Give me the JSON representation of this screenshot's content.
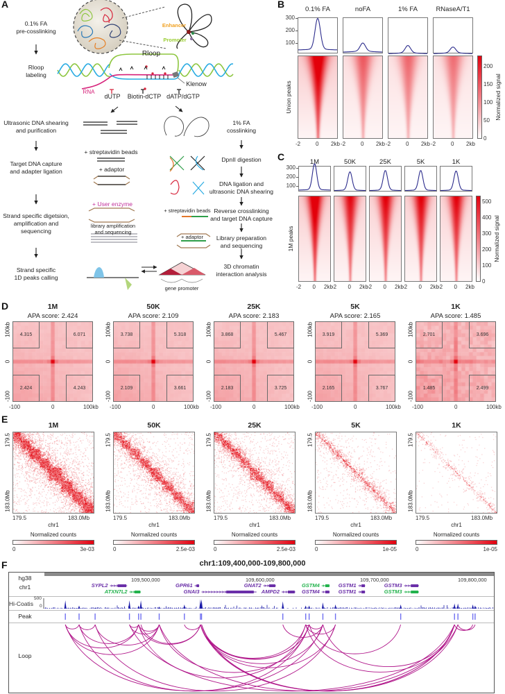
{
  "panel_labels": {
    "A": "A",
    "B": "B",
    "C": "C",
    "D": "D",
    "E": "E",
    "F": "F"
  },
  "panel_a": {
    "left_steps": [
      "0.1% FA\npre-cosslinking",
      "Rloop\nlabeling",
      "Ultrasonic DNA shearing\nand purification",
      "Target DNA capture\nand adapter ligation",
      "Strand specific digetsion,\namplification and\nsequencing",
      "Strand specific\n1D peaks calling"
    ],
    "right_steps": [
      "1% FA\ncosslinking",
      "DpnII digestion",
      "DNA ligation and\nultrasonic DNA shearing",
      "Reverse crosslinking\nand target DNA capture",
      "Library preparation\nand sequencing",
      "3D chromatin\ninteraction analysis"
    ],
    "labels": {
      "enhancer": "Enhancer",
      "promoter": "Promoter",
      "rloop": "Rloop",
      "klenow": "Klenow",
      "rna": "RNA",
      "dutp": "dUTP",
      "biotin_dctp": "Biotin-dCTP",
      "datp_dgtp": "dATP/dGTP",
      "streptavidin_1": "+ streptavidin beads",
      "adaptor_1": "+ adaptor",
      "user_enzyme": "+ User enzyme",
      "library_amp": "library amplification\nand sequencing",
      "streptavidin_2": "+ streptavidin beads",
      "adaptor_2": "+ adaptor",
      "gene_promoter": "gene promoter"
    },
    "colors": {
      "enhancer": "#f0a020",
      "promoter": "#9acd32",
      "rna": "#d6217a",
      "user_enzyme": "#c0309a"
    }
  },
  "chart_data": [
    {
      "panel": "B",
      "type": "heatmap",
      "columns": [
        {
          "title": "0.1% FA",
          "profile_peak": 290,
          "profile_baseline": 45
        },
        {
          "title": "noFA",
          "profile_peak": 92,
          "profile_baseline": 28
        },
        {
          "title": "1% FA",
          "profile_peak": 72,
          "profile_baseline": 15
        },
        {
          "title": "RNaseA/T1",
          "profile_peak": 60,
          "profile_baseline": 15
        }
      ],
      "profile_yticks": [
        100,
        200,
        300
      ],
      "xticks": [
        "-2",
        "0",
        "2kb"
      ],
      "ylabel": "Union peaks",
      "colorbar": {
        "label": "Normalized signal",
        "ticks": [
          0,
          50,
          100,
          150,
          200
        ],
        "range": [
          0,
          230
        ]
      },
      "line_color": "#2b2b8c",
      "heat_color": "#e3000f"
    },
    {
      "panel": "C",
      "type": "heatmap",
      "columns": [
        {
          "title": "1M",
          "profile_peak": 340,
          "profile_baseline": 55
        },
        {
          "title": "50K",
          "profile_peak": 250,
          "profile_baseline": 50
        },
        {
          "title": "25K",
          "profile_peak": 265,
          "profile_baseline": 50
        },
        {
          "title": "5K",
          "profile_peak": 265,
          "profile_baseline": 50
        },
        {
          "title": "1K",
          "profile_peak": 260,
          "profile_baseline": 50
        }
      ],
      "profile_yticks": [
        100,
        200,
        300
      ],
      "xticks": [
        "-2",
        "0",
        "2kb"
      ],
      "ylabel": "1M peaks",
      "colorbar": {
        "label": "Normalized signal",
        "ticks": [
          0,
          100,
          200,
          300,
          400,
          500
        ],
        "range": [
          0,
          540
        ]
      },
      "line_color": "#2b2b8c",
      "heat_color": "#e3000f"
    },
    {
      "panel": "D",
      "type": "heatmap",
      "score_prefix": "APA score: ",
      "yticks": [
        "100kb",
        "0",
        "-100"
      ],
      "xticks": [
        "-100",
        "0",
        "100kb"
      ],
      "plots": [
        {
          "title": "1M",
          "apa_score": "2.424",
          "corners": {
            "top_left": "4.315",
            "top_right": "6.071",
            "bottom_left": "2.424",
            "bottom_right": "4.243"
          }
        },
        {
          "title": "50K",
          "apa_score": "2.109",
          "corners": {
            "top_left": "3.738",
            "top_right": "5.318",
            "bottom_left": "2.109",
            "bottom_right": "3.661"
          }
        },
        {
          "title": "25K",
          "apa_score": "2.183",
          "corners": {
            "top_left": "3.868",
            "top_right": "5.467",
            "bottom_left": "2.183",
            "bottom_right": "3.725"
          }
        },
        {
          "title": "5K",
          "apa_score": "2.165",
          "corners": {
            "top_left": "3.919",
            "top_right": "5.369",
            "bottom_left": "2.165",
            "bottom_right": "3.767"
          }
        },
        {
          "title": "1K",
          "apa_score": "1.485",
          "corners": {
            "top_left": "2.701",
            "top_right": "3.696",
            "bottom_left": "1.485",
            "bottom_right": "2.499"
          }
        }
      ]
    },
    {
      "panel": "E",
      "type": "heatmap",
      "xlabel": "chr1",
      "xticks": [
        "179.5",
        "183.0Mb"
      ],
      "yticks": [
        "179.5",
        "183.0Mb"
      ],
      "colorbar_label": "Normalized counts",
      "plots": [
        {
          "title": "1M",
          "colorbar": [
            "0",
            "3e-03"
          ],
          "density": 1.0
        },
        {
          "title": "50K",
          "colorbar": [
            "0",
            "2.5e-03"
          ],
          "density": 0.75
        },
        {
          "title": "25K",
          "colorbar": [
            "0",
            "2.5e-03"
          ],
          "density": 0.7
        },
        {
          "title": "5K",
          "colorbar": [
            "0",
            "1e-05"
          ],
          "density": 0.42
        },
        {
          "title": "1K",
          "colorbar": [
            "0",
            "1e-05"
          ],
          "density": 0.18
        }
      ]
    },
    {
      "panel": "F",
      "type": "genome-browser",
      "title": "chr1:109,400,000-109,800,000",
      "genome": "hg38",
      "chrom": "chr1",
      "coordinate_ticks": [
        {
          "pos": 109500000,
          "label": "109,500,000"
        },
        {
          "pos": 109600000,
          "label": "109,600,000"
        },
        {
          "pos": 109700000,
          "label": "109,700,000"
        },
        {
          "pos": 109800000,
          "label": "109,800,000"
        }
      ],
      "genes": [
        {
          "name": "SYPL2",
          "row": 1,
          "start": 109467000,
          "end": 109482000,
          "color": "#6a2fa8"
        },
        {
          "name": "ATXN7L2",
          "row": 2,
          "start": 109484000,
          "end": 109494000,
          "color": "#22b24c"
        },
        {
          "name": "GPR61",
          "row": 1,
          "start": 109541000,
          "end": 109545000,
          "color": "#6a2fa8"
        },
        {
          "name": "GNAI3",
          "row": 2,
          "start": 109547000,
          "end": 109595000,
          "color": "#6a2fa8"
        },
        {
          "name": "GNAT2",
          "row": 1,
          "start": 109601000,
          "end": 109612000,
          "color": "#6a2fa8"
        },
        {
          "name": "AMPD2",
          "row": 2,
          "start": 109617000,
          "end": 109629000,
          "color": "#6a2fa8"
        },
        {
          "name": "GSTM4",
          "row": 1,
          "start": 109652000,
          "end": 109659000,
          "color": "#22b24c"
        },
        {
          "name": "GSTM4",
          "row": 2,
          "start": 109652000,
          "end": 109659000,
          "color": "#6a2fa8"
        },
        {
          "name": "GSTM1",
          "row": 1,
          "start": 109684000,
          "end": 109690000,
          "color": "#6a2fa8"
        },
        {
          "name": "GSTM1",
          "row": 2,
          "start": 109684000,
          "end": 109690000,
          "color": "#6a2fa8"
        },
        {
          "name": "GSTM3",
          "row": 1,
          "start": 109724000,
          "end": 109737000,
          "color": "#6a2fa8"
        },
        {
          "name": "GSTM3",
          "row": 2,
          "start": 109724000,
          "end": 109737000,
          "color": "#22b24c"
        }
      ],
      "signal_track": {
        "label": "Hi-Coatis",
        "range": [
          0,
          500
        ],
        "ticks": [
          "500",
          "0"
        ],
        "color": "#1a1aa8"
      },
      "peak_label": "Peak",
      "peak_color": "#6f6ff0",
      "loop_label": "Loop",
      "loop_color": "#b0168a",
      "peaks": [
        {
          "pos": 109428000,
          "signal": 400
        },
        {
          "pos": 109440000,
          "signal": 150
        },
        {
          "pos": 109454000,
          "signal": 50
        },
        {
          "pos": 109484000,
          "signal": 400
        },
        {
          "pos": 109492000,
          "signal": 150
        },
        {
          "pos": 109494000,
          "signal": 400
        },
        {
          "pos": 109510000,
          "signal": 100
        },
        {
          "pos": 109532000,
          "signal": 200
        },
        {
          "pos": 109546000,
          "signal": 450
        },
        {
          "pos": 109547000,
          "signal": 450
        },
        {
          "pos": 109618000,
          "signal": 350
        },
        {
          "pos": 109638000,
          "signal": 150
        },
        {
          "pos": 109641000,
          "signal": 150
        },
        {
          "pos": 109653000,
          "signal": 300
        },
        {
          "pos": 109664000,
          "signal": 200
        },
        {
          "pos": 109721000,
          "signal": 200
        },
        {
          "pos": 109768000,
          "signal": 250
        },
        {
          "pos": 109771000,
          "signal": 250
        },
        {
          "pos": 109784000,
          "signal": 200
        },
        {
          "pos": 109786000,
          "signal": 150
        }
      ],
      "loops": [
        [
          0,
          1
        ],
        [
          1,
          2
        ],
        [
          0,
          4
        ],
        [
          1,
          4
        ],
        [
          0,
          6
        ],
        [
          2,
          6
        ],
        [
          3,
          4
        ],
        [
          4,
          6
        ],
        [
          3,
          6
        ],
        [
          4,
          8
        ],
        [
          5,
          8
        ],
        [
          7,
          8
        ],
        [
          8,
          11
        ],
        [
          8,
          12
        ],
        [
          8,
          13
        ],
        [
          8,
          14
        ],
        [
          8,
          16
        ],
        [
          9,
          12
        ],
        [
          9,
          16
        ],
        [
          4,
          11
        ],
        [
          6,
          12
        ],
        [
          1,
          12
        ],
        [
          0,
          13
        ],
        [
          2,
          14
        ],
        [
          11,
          12
        ],
        [
          12,
          13
        ],
        [
          11,
          14
        ],
        [
          12,
          15
        ],
        [
          11,
          16
        ],
        [
          13,
          16
        ],
        [
          16,
          18
        ],
        [
          17,
          19
        ],
        [
          3,
          16
        ],
        [
          6,
          17
        ],
        [
          10,
          13
        ],
        [
          9,
          17
        ]
      ]
    }
  ]
}
